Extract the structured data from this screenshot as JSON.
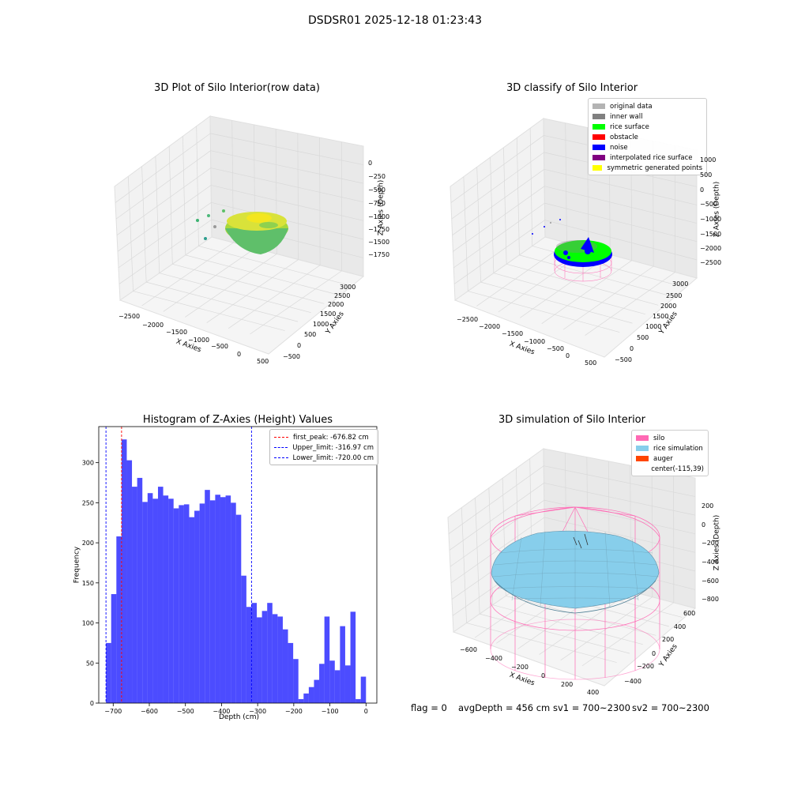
{
  "figure": {
    "suptitle": "DSDSR01 2025-12-18 01:23:43",
    "colors": {
      "grid": "#d9d9d9",
      "pane": "#f2f2f2",
      "silo": "#ff69b4",
      "rice_sim": "#87ceeb",
      "auger": "#ff4500",
      "hist": "#0000ff",
      "first_peak": "#ff0000",
      "limits": "#0000ff"
    },
    "status": {
      "flag": "flag = 0",
      "avg_depth": "avgDepth = 456 cm",
      "sv1": "sv1 = 700~2300",
      "sv2": "sv2 = 700~2300"
    }
  },
  "panel_tl": {
    "title": "3D Plot of Silo Interior(row data)",
    "xlabel": "X Axies",
    "ylabel": "Y Axies",
    "zlabel": "Z Axies (Depth)",
    "xticks": [
      "−2500",
      "−2000",
      "−1500",
      "−1000",
      "−500",
      "0",
      "500"
    ],
    "yticks": [
      "−500",
      "0",
      "500",
      "1000",
      "1500",
      "2000",
      "2500",
      "3000"
    ],
    "zticks": [
      "0",
      "−250",
      "−500",
      "−750",
      "−1000",
      "−1250",
      "−1500",
      "−1750"
    ]
  },
  "panel_tr": {
    "title": "3D classify of Silo Interior",
    "xlabel": "X Axies",
    "ylabel": "Y Axies",
    "zlabel": "Z Axies (Depth)",
    "xticks": [
      "−2500",
      "−2000",
      "−1500",
      "−1000",
      "−500",
      "0",
      "500"
    ],
    "yticks": [
      "−500",
      "0",
      "500",
      "1000",
      "1500",
      "2000",
      "2500",
      "3000"
    ],
    "zticks": [
      "1000",
      "500",
      "0",
      "−500",
      "−1000",
      "−1500",
      "−2000",
      "−2500"
    ],
    "legend": [
      {
        "label": "original data",
        "color": "#b3b3b3"
      },
      {
        "label": "inner wall",
        "color": "#808080"
      },
      {
        "label": "rice surface",
        "color": "#00ff00"
      },
      {
        "label": "obstacle",
        "color": "#ff0000"
      },
      {
        "label": "noise",
        "color": "#0000ff"
      },
      {
        "label": "interpolated rice surface",
        "color": "#800080"
      },
      {
        "label": "symmetric generated points",
        "color": "#ffff00"
      }
    ]
  },
  "panel_br": {
    "title": "3D simulation of Silo Interior",
    "xlabel": "X Axies",
    "ylabel": "Y Axies",
    "zlabel": "Z Axies (Depth)",
    "xticks": [
      "−600",
      "−400",
      "−200",
      "0",
      "200",
      "400"
    ],
    "yticks": [
      "−400",
      "−200",
      "0",
      "200",
      "400",
      "600"
    ],
    "zticks": [
      "200",
      "0",
      "−200",
      "−400",
      "−600",
      "−800"
    ],
    "legend": [
      {
        "label": "silo",
        "color": "#ff69b4"
      },
      {
        "label": "rice simulation",
        "color": "#87ceeb"
      },
      {
        "label": "auger",
        "color": "#ff4500"
      },
      {
        "label": "center(-115,39)",
        "color": ""
      }
    ]
  },
  "chart_data": [
    {
      "type": "bar",
      "title": "Histogram of Z-Axies (Height) Values",
      "xlabel": "Depth (cm)",
      "ylabel": "Frequency",
      "xlim": [
        -740,
        30
      ],
      "ylim": [
        0,
        345
      ],
      "xticks": [
        -700,
        -600,
        -500,
        -400,
        -300,
        -200,
        -100,
        0
      ],
      "xtick_labels": [
        "−700",
        "−600",
        "−500",
        "−400",
        "−300",
        "−200",
        "−100",
        "0"
      ],
      "yticks": [
        0,
        50,
        100,
        150,
        200,
        250,
        300
      ],
      "yticks_labels": [
        "0",
        "50",
        "100",
        "150",
        "200",
        "250",
        "300"
      ],
      "bin_start": -720,
      "bin_width": 14.4,
      "values": [
        75,
        136,
        208,
        329,
        303,
        270,
        281,
        251,
        262,
        255,
        270,
        259,
        255,
        243,
        247,
        248,
        232,
        240,
        249,
        266,
        253,
        260,
        257,
        259,
        250,
        235,
        159,
        120,
        125,
        107,
        115,
        125,
        111,
        108,
        92,
        75,
        55,
        5,
        12,
        20,
        29,
        49,
        108,
        53,
        41,
        96,
        47,
        114,
        5,
        33
      ],
      "vlines": [
        {
          "name": "first_peak: -676.82 cm",
          "x": -676.82,
          "color": "#ff0000"
        },
        {
          "name": "Upper_limit: -316.97 cm",
          "x": -316.97,
          "color": "#0000ff"
        },
        {
          "name": "Lower_limit: -720.00 cm",
          "x": -720.0,
          "color": "#0000ff"
        }
      ],
      "legend_position": "top-right"
    }
  ]
}
